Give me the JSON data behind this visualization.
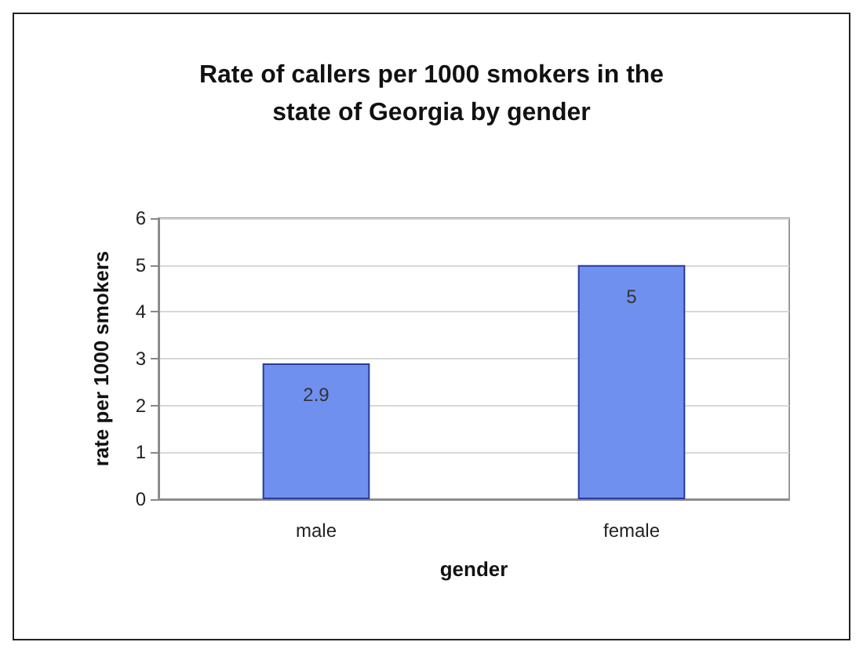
{
  "chart_data": {
    "type": "bar",
    "title": "Rate of callers per 1000 smokers in the\nstate of Georgia by gender",
    "xlabel": "gender",
    "ylabel": "rate per 1000 smokers",
    "categories": [
      "male",
      "female"
    ],
    "values": [
      2.9,
      5
    ],
    "color": "#7090f0",
    "ylim": [
      0,
      6
    ],
    "yticks": [
      0,
      1,
      2,
      3,
      4,
      5,
      6
    ],
    "grid": "y",
    "data_labels": true
  }
}
